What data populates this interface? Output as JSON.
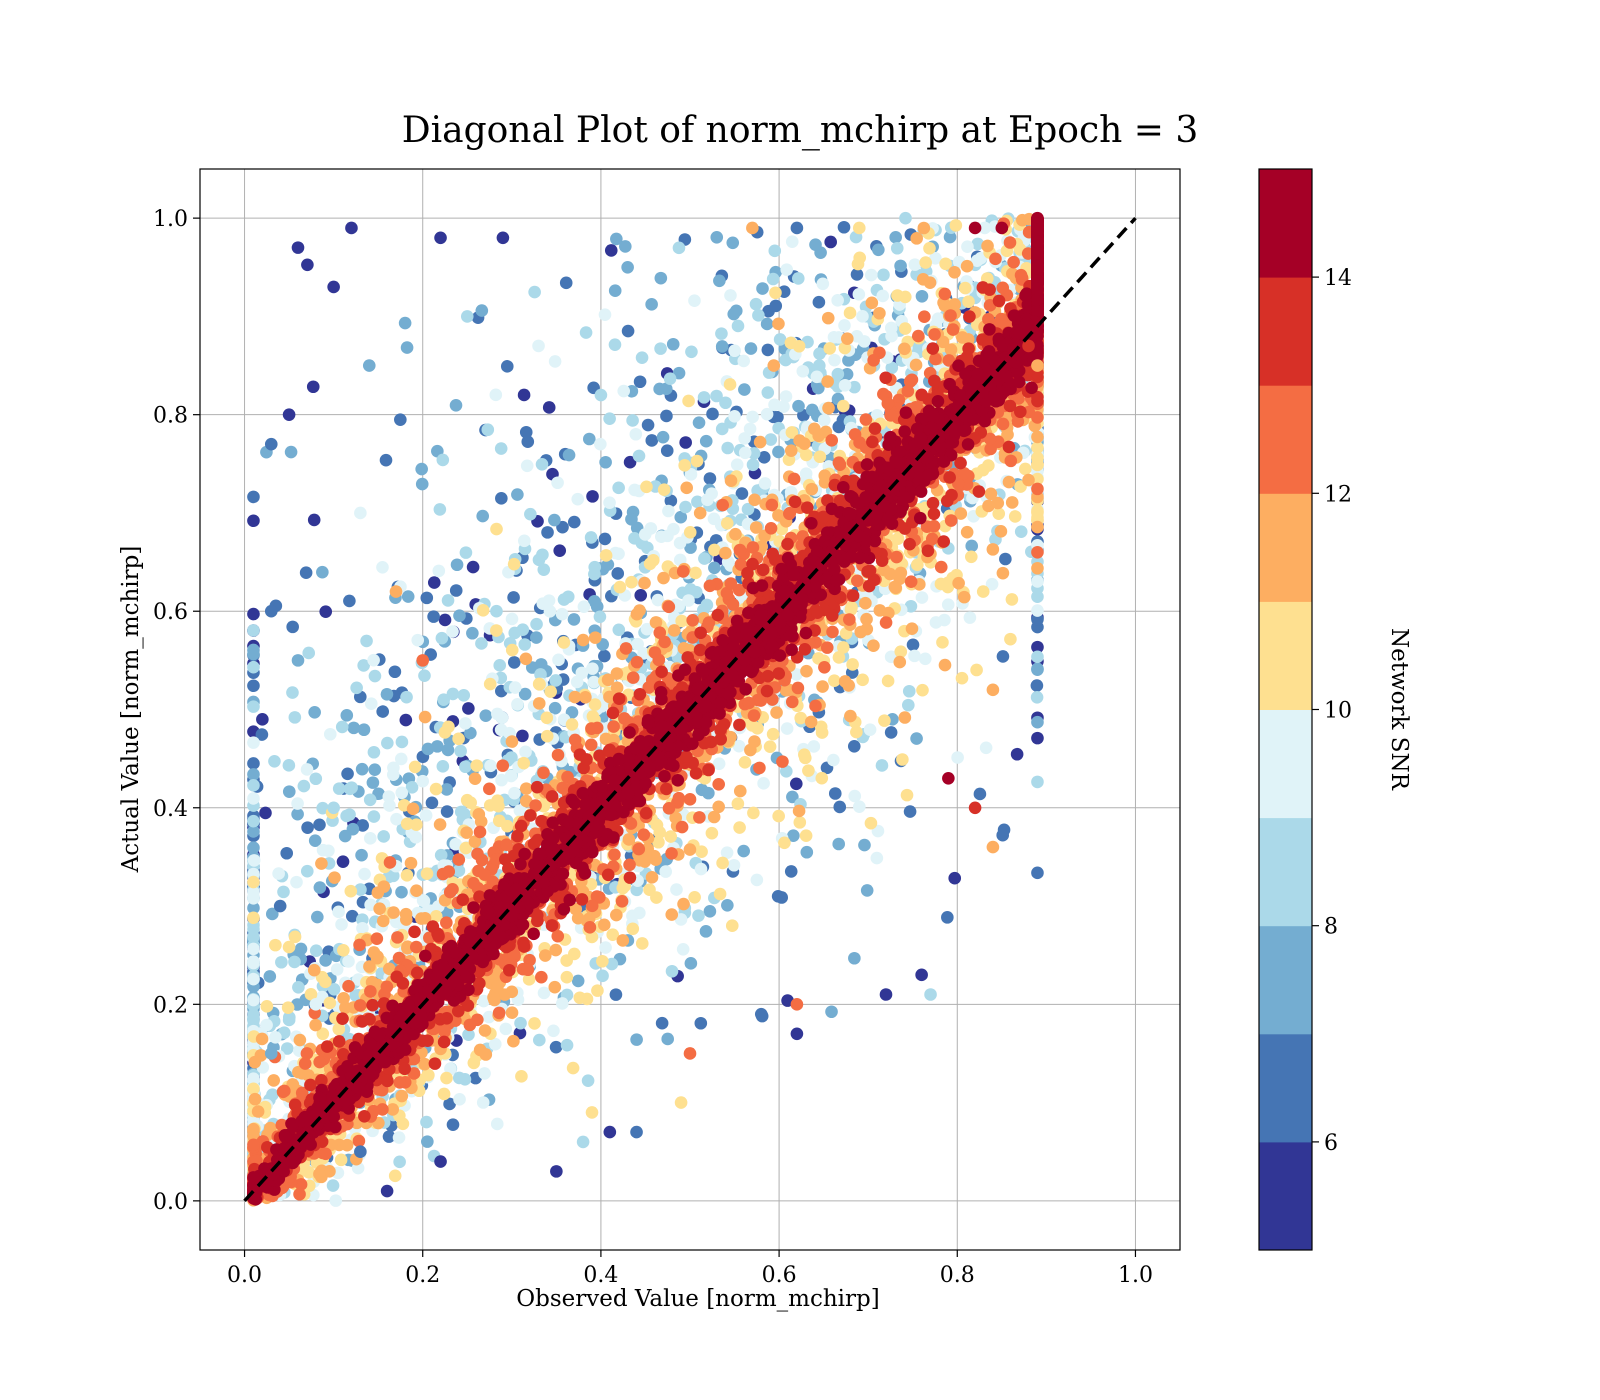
{
  "chart_data": {
    "type": "scatter",
    "title": "Diagonal Plot of norm_mchirp at Epoch = 3",
    "xlabel": "Observed Value [norm_mchirp]",
    "ylabel": "Actual Value [norm_mchirp]",
    "xlim": [
      -0.05,
      1.05
    ],
    "ylim": [
      -0.05,
      1.05
    ],
    "xticks": [
      "0.0",
      "0.2",
      "0.4",
      "0.6",
      "0.8",
      "1.0"
    ],
    "yticks": [
      "0.0",
      "0.2",
      "0.4",
      "0.6",
      "0.8",
      "1.0"
    ],
    "grid": true,
    "reference_line": {
      "x": [
        0.0,
        1.0
      ],
      "y": [
        0.0,
        1.0
      ],
      "style": "dashed",
      "color": "#000000"
    },
    "colorbar": {
      "label": "Network SNR",
      "range": [
        5.0,
        15.0
      ],
      "ticks": [
        "6",
        "8",
        "10",
        "12",
        "14"
      ],
      "tick_values": [
        6,
        8,
        10,
        12,
        14
      ],
      "colors": [
        "#313695",
        "#4575b4",
        "#74add1",
        "#abd9e9",
        "#e0f3f8",
        "#fee090",
        "#fdae61",
        "#f46d43",
        "#d73027",
        "#a50026"
      ]
    },
    "series_description": "Dense scatter of predicted vs true norm_mchirp, colored by Network SNR; high-SNR points (red) cluster tightly along the diagonal, low-SNR points (blue) scatter widely, mostly above the diagonal at low observed values.",
    "points": [
      {
        "x": 0.06,
        "y": 0.97,
        "snr": 5.3
      },
      {
        "x": 0.1,
        "y": 0.93,
        "snr": 5.6
      },
      {
        "x": 0.12,
        "y": 0.99,
        "snr": 5.4
      },
      {
        "x": 0.22,
        "y": 0.98,
        "snr": 5.5
      },
      {
        "x": 0.29,
        "y": 0.98,
        "snr": 5.8
      },
      {
        "x": 0.43,
        "y": 0.95,
        "snr": 7.2
      },
      {
        "x": 0.62,
        "y": 0.99,
        "snr": 6.1
      },
      {
        "x": 0.05,
        "y": 0.8,
        "snr": 5.5
      },
      {
        "x": 0.03,
        "y": 0.77,
        "snr": 6.2
      },
      {
        "x": 0.14,
        "y": 0.85,
        "snr": 7.5
      },
      {
        "x": 0.25,
        "y": 0.9,
        "snr": 8.3
      },
      {
        "x": 0.33,
        "y": 0.87,
        "snr": 9.0
      },
      {
        "x": 0.4,
        "y": 0.82,
        "snr": 8.0
      },
      {
        "x": 0.02,
        "y": 0.49,
        "snr": 5.4
      },
      {
        "x": 0.03,
        "y": 0.6,
        "snr": 6.3
      },
      {
        "x": 0.06,
        "y": 0.55,
        "snr": 7.1
      },
      {
        "x": 0.1,
        "y": 0.4,
        "snr": 8.4
      },
      {
        "x": 0.13,
        "y": 0.7,
        "snr": 9.8
      },
      {
        "x": 0.17,
        "y": 0.62,
        "snr": 11.2
      },
      {
        "x": 0.2,
        "y": 0.55,
        "snr": 12.3
      },
      {
        "x": 0.04,
        "y": 0.3,
        "snr": 6.8
      },
      {
        "x": 0.08,
        "y": 0.2,
        "snr": 9.2
      },
      {
        "x": 0.03,
        "y": 0.15,
        "snr": 7.9
      },
      {
        "x": 0.16,
        "y": 0.01,
        "snr": 5.5
      },
      {
        "x": 0.13,
        "y": 0.05,
        "snr": 6.4
      },
      {
        "x": 0.22,
        "y": 0.04,
        "snr": 5.9
      },
      {
        "x": 0.35,
        "y": 0.03,
        "snr": 5.2
      },
      {
        "x": 0.41,
        "y": 0.07,
        "snr": 5.6
      },
      {
        "x": 0.44,
        "y": 0.07,
        "snr": 6.0
      },
      {
        "x": 0.38,
        "y": 0.06,
        "snr": 8.7
      },
      {
        "x": 0.39,
        "y": 0.09,
        "snr": 10.0
      },
      {
        "x": 0.49,
        "y": 0.1,
        "snr": 10.6
      },
      {
        "x": 0.5,
        "y": 0.15,
        "snr": 12.9
      },
      {
        "x": 0.62,
        "y": 0.17,
        "snr": 5.4
      },
      {
        "x": 0.58,
        "y": 0.19,
        "snr": 6.0
      },
      {
        "x": 0.72,
        "y": 0.21,
        "snr": 5.3
      },
      {
        "x": 0.76,
        "y": 0.23,
        "snr": 5.4
      },
      {
        "x": 0.77,
        "y": 0.21,
        "snr": 8.6
      },
      {
        "x": 0.62,
        "y": 0.2,
        "snr": 12.7
      },
      {
        "x": 0.84,
        "y": 0.36,
        "snr": 11.8
      },
      {
        "x": 0.82,
        "y": 0.4,
        "snr": 13.2
      },
      {
        "x": 0.79,
        "y": 0.43,
        "snr": 14.6
      },
      {
        "x": 0.84,
        "y": 0.52,
        "snr": 11.5
      },
      {
        "x": 0.89,
        "y": 0.66,
        "snr": 12.8
      },
      {
        "x": 0.89,
        "y": 0.85,
        "snr": 11.0
      },
      {
        "x": 0.88,
        "y": 0.87,
        "snr": 13.5
      },
      {
        "x": 0.82,
        "y": 0.99,
        "snr": 14.2
      },
      {
        "x": 0.85,
        "y": 0.99,
        "snr": 14.8
      },
      {
        "x": 0.57,
        "y": 0.99,
        "snr": 11.6
      },
      {
        "x": 0.69,
        "y": 0.99,
        "snr": 10.4
      }
    ]
  }
}
